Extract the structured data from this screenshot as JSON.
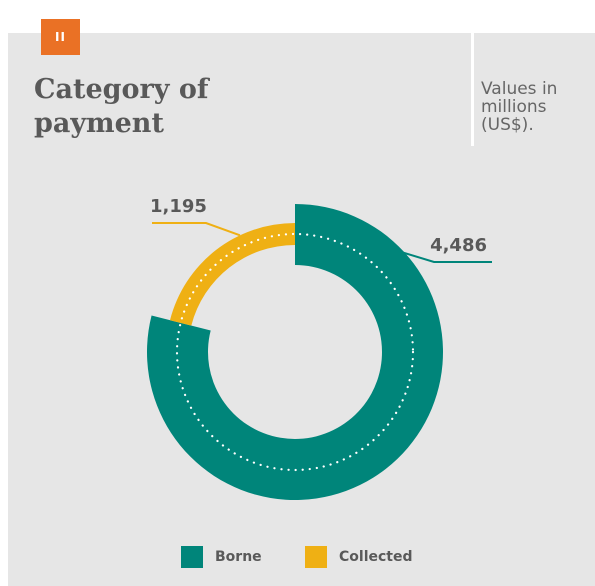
{
  "badge": "II",
  "title": "Category of payment",
  "units_note": "Values in millions (US$).",
  "colors": {
    "borne": "#00857a",
    "collected": "#efb014",
    "background": "#e6e6e6",
    "badge": "#ea7125"
  },
  "chart_data": {
    "type": "pie",
    "variant": "donut",
    "title": "Category of payment",
    "categories": [
      "Borne",
      "Collected"
    ],
    "values": [
      4486,
      1195
    ],
    "value_labels": [
      "4,486",
      "1,195"
    ],
    "legend": "bottom-center"
  },
  "legend": [
    {
      "label": "Borne",
      "color": "#00857a"
    },
    {
      "label": "Collected",
      "color": "#efb014"
    }
  ]
}
